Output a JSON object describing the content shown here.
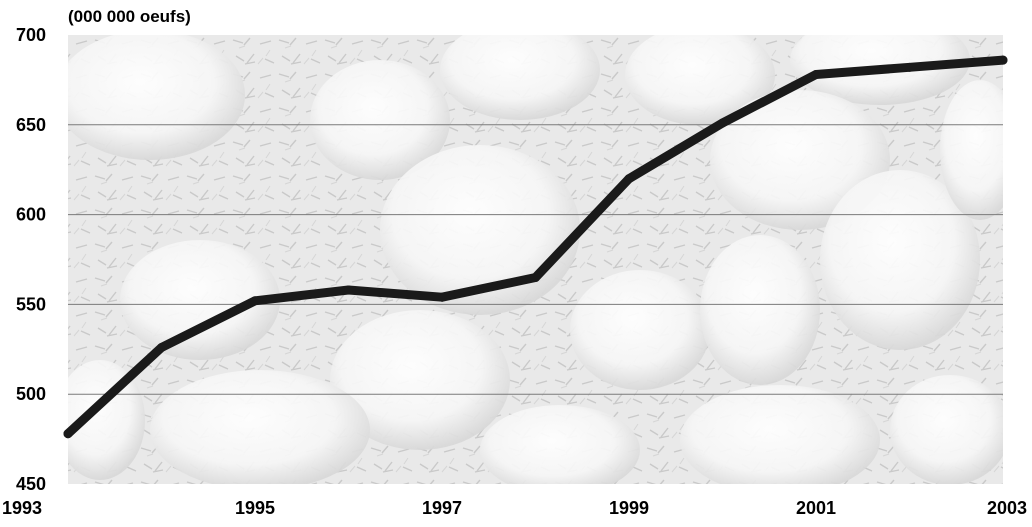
{
  "chart_data": {
    "type": "line",
    "unit_label": "(000 000 oeufs)",
    "x": [
      1993,
      1994,
      1995,
      1996,
      1997,
      1998,
      1999,
      2000,
      2001,
      2002,
      2003
    ],
    "series": [
      {
        "values": [
          478,
          526,
          552,
          558,
          554,
          565,
          620,
          651,
          678,
          682,
          686
        ]
      }
    ],
    "x_tick_labels": [
      "1993",
      "1995",
      "1997",
      "1999",
      "2001",
      "2003"
    ],
    "y_tick_labels": [
      "450",
      "500",
      "550",
      "600",
      "650",
      "700"
    ],
    "xlim": [
      1993,
      2003
    ],
    "ylim": [
      450,
      700
    ],
    "grid": true,
    "background": "photograph of white chicks (greyscale)",
    "colors": {
      "line": "#1a1a1a",
      "grid": "#7a7a7a",
      "text": "#000000"
    }
  }
}
